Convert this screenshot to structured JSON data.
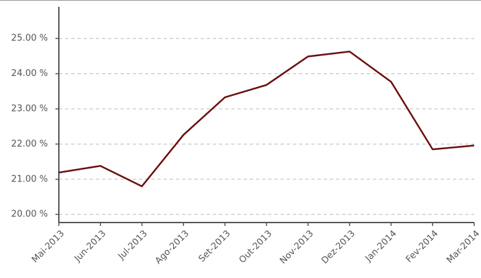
{
  "chart_data": {
    "type": "line",
    "categories": [
      "Mai-2013",
      "Jun-2013",
      "Jul-2013",
      "Ago-2013",
      "Set-2013",
      "Out-2013",
      "Nov-2013",
      "Dez-2013",
      "Jan-2014",
      "Fev-2014",
      "Mar-2014"
    ],
    "series": [
      {
        "color": "#6b0f0f",
        "values": [
          21.19,
          21.38,
          20.8,
          22.26,
          23.33,
          23.68,
          24.49,
          24.63,
          23.77,
          21.85,
          21.96
        ]
      }
    ],
    "ylim": [
      19.77,
      25.9
    ],
    "yticks": [
      {
        "value": 20,
        "label": "20.00 %"
      },
      {
        "value": 21,
        "label": "21.00 %"
      },
      {
        "value": 22,
        "label": "22.00 %"
      },
      {
        "value": 23,
        "label": "23.00 %"
      },
      {
        "value": 24,
        "label": "24.00 %"
      },
      {
        "value": 25,
        "label": "25.00 %"
      }
    ],
    "grid": true
  }
}
